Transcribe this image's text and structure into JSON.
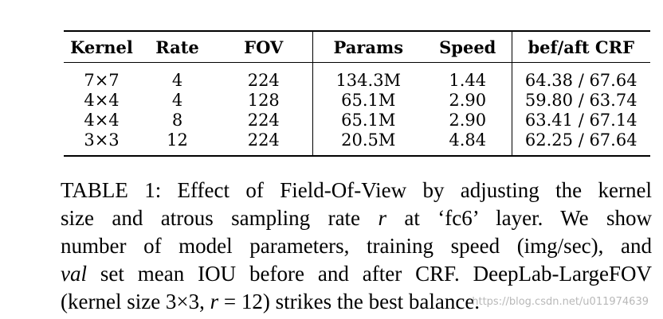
{
  "table": {
    "headers": [
      "Kernel",
      "Rate",
      "FOV",
      "Params",
      "Speed",
      "bef/aft CRF"
    ],
    "rows": [
      [
        "7×7",
        "4",
        "224",
        "134.3M",
        "1.44",
        "64.38 / 67.64"
      ],
      [
        "4×4",
        "4",
        "128",
        "65.1M",
        "2.90",
        "59.80 / 63.74"
      ],
      [
        "4×4",
        "8",
        "224",
        "65.1M",
        "2.90",
        "63.41 / 67.14"
      ],
      [
        "3×3",
        "12",
        "224",
        "20.5M",
        "4.84",
        "62.25 / 67.64"
      ]
    ]
  },
  "caption": {
    "l1": "TABLE 1: Effect of Field-Of-View by adjusting the kernel",
    "l2a": "size and atrous sampling rate ",
    "l2var": "r",
    "l2b": " at ‘fc6’ layer. We show",
    "l3": "number of model parameters, training speed (img/sec), and",
    "l4it": "val",
    "l4b": " set mean IOU before and after CRF. DeepLab-LargeFOV",
    "l5a": "(kernel size 3×3, ",
    "l5var": "r",
    "l5b": " = 12) strikes the best balance."
  },
  "watermark": "https://blog.csdn.net/u011974639"
}
